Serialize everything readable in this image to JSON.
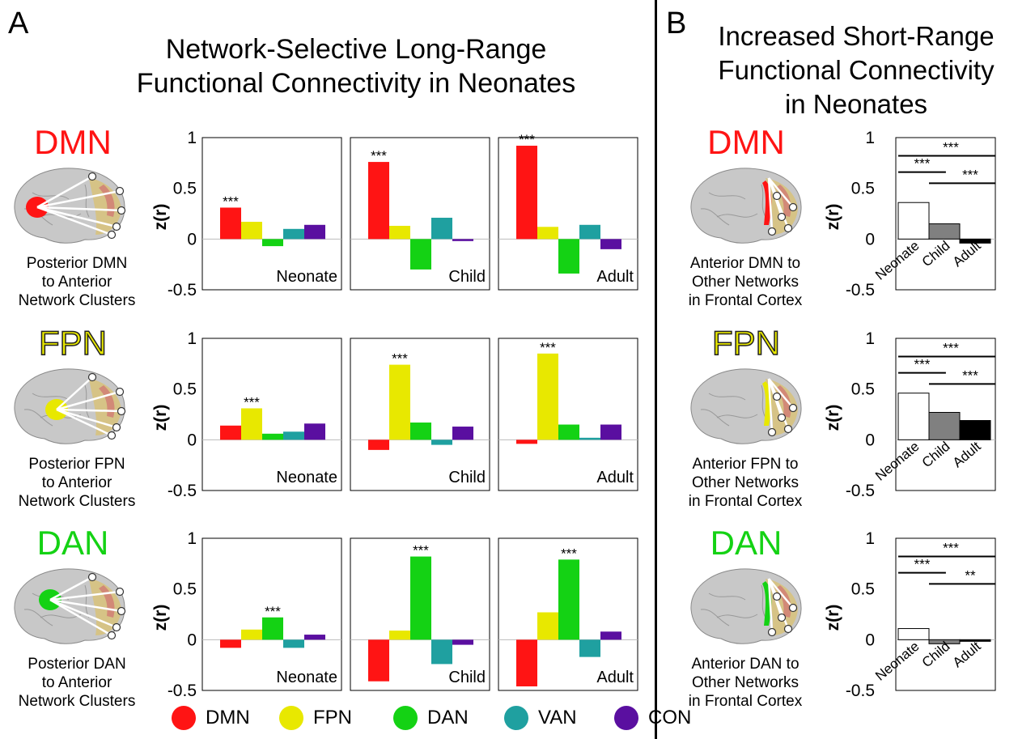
{
  "panel_a": {
    "letter": "A",
    "title_line1": "Network-Selective Long-Range",
    "title_line2": "Functional Connectivity in Neonates"
  },
  "panel_b": {
    "letter": "B",
    "title_line1": "Increased Short-Range",
    "title_line2": "Functional Connectivity",
    "title_line3": "in Neonates"
  },
  "rows": [
    {
      "network": "DMN",
      "color": "#ff1414",
      "desc_a": [
        "Posterior DMN",
        "to Anterior",
        "Network Clusters"
      ],
      "desc_b": [
        "Anterior DMN to",
        "Other Networks",
        "in Frontal Cortex"
      ]
    },
    {
      "network": "FPN",
      "color": "#e8e800",
      "desc_a": [
        "Posterior FPN",
        "to Anterior",
        "Network Clusters"
      ],
      "desc_b": [
        "Anterior FPN to",
        "Other Networks",
        "in Frontal Cortex"
      ]
    },
    {
      "network": "DAN",
      "color": "#14d214",
      "desc_a": [
        "Posterior DAN",
        "to Anterior",
        "Network Clusters"
      ],
      "desc_b": [
        "Anterior DAN to",
        "Other Networks",
        "in Frontal Cortex"
      ]
    }
  ],
  "legend": [
    {
      "label": "DMN",
      "color": "#ff1414"
    },
    {
      "label": "FPN",
      "color": "#e8e800"
    },
    {
      "label": "DAN",
      "color": "#14d214"
    },
    {
      "label": "VAN",
      "color": "#1fa0a0"
    },
    {
      "label": "CON",
      "color": "#5a0fa0"
    }
  ],
  "chart_data": [
    {
      "type": "bar",
      "panel": "A",
      "ylabel": "z(r)",
      "ylim": [
        -0.5,
        1
      ],
      "yticks": [
        "1",
        "0.5",
        "0",
        "-0.5"
      ],
      "categories": [
        "DMN",
        "FPN",
        "DAN",
        "VAN",
        "CON"
      ],
      "series_colors": [
        "#ff1414",
        "#e8e800",
        "#14d214",
        "#1fa0a0",
        "#5a0fa0"
      ],
      "rows": [
        {
          "network": "DMN",
          "groups": [
            {
              "name": "Neonate",
              "values": [
                0.31,
                0.17,
                -0.07,
                0.1,
                0.14
              ],
              "star_index": 0,
              "stars": "***"
            },
            {
              "name": "Child",
              "values": [
                0.76,
                0.13,
                -0.3,
                0.21,
                -0.02
              ],
              "star_index": 0,
              "stars": "***"
            },
            {
              "name": "Adult",
              "values": [
                0.92,
                0.12,
                -0.34,
                0.14,
                -0.1
              ],
              "star_index": 0,
              "stars": "***"
            }
          ]
        },
        {
          "network": "FPN",
          "groups": [
            {
              "name": "Neonate",
              "values": [
                0.14,
                0.31,
                0.06,
                0.08,
                0.16
              ],
              "star_index": 1,
              "stars": "***"
            },
            {
              "name": "Child",
              "values": [
                -0.1,
                0.74,
                0.17,
                -0.05,
                0.13
              ],
              "star_index": 1,
              "stars": "***"
            },
            {
              "name": "Adult",
              "values": [
                -0.04,
                0.85,
                0.15,
                0.02,
                0.15
              ],
              "star_index": 1,
              "stars": "***"
            }
          ]
        },
        {
          "network": "DAN",
          "groups": [
            {
              "name": "Neonate",
              "values": [
                -0.08,
                0.1,
                0.22,
                -0.08,
                0.05
              ],
              "star_index": 2,
              "stars": "***"
            },
            {
              "name": "Child",
              "values": [
                -0.41,
                0.09,
                0.82,
                -0.24,
                -0.05
              ],
              "star_index": 2,
              "stars": "***"
            },
            {
              "name": "Adult",
              "values": [
                -0.46,
                0.27,
                0.79,
                -0.17,
                0.08
              ],
              "star_index": 2,
              "stars": "***"
            }
          ]
        }
      ]
    },
    {
      "type": "bar",
      "panel": "B",
      "ylabel": "z(r)",
      "ylim": [
        -0.5,
        1
      ],
      "yticks": [
        "1",
        "0.5",
        "0",
        "-0.5"
      ],
      "categories": [
        "Neonate",
        "Child",
        "Adult"
      ],
      "bar_colors": [
        "#ffffff",
        "#808080",
        "#000000"
      ],
      "rows": [
        {
          "network": "DMN",
          "values": [
            0.36,
            0.15,
            -0.04
          ],
          "comparisons": [
            {
              "from": 0,
              "to": 2,
              "stars": "***"
            },
            {
              "from": 0,
              "to": 1,
              "stars": "***"
            },
            {
              "from": 1,
              "to": 2,
              "stars": "***"
            }
          ]
        },
        {
          "network": "FPN",
          "values": [
            0.46,
            0.27,
            0.19
          ],
          "comparisons": [
            {
              "from": 0,
              "to": 2,
              "stars": "***"
            },
            {
              "from": 0,
              "to": 1,
              "stars": "***"
            },
            {
              "from": 1,
              "to": 2,
              "stars": "***"
            }
          ]
        },
        {
          "network": "DAN",
          "values": [
            0.11,
            -0.04,
            0.0
          ],
          "comparisons": [
            {
              "from": 0,
              "to": 2,
              "stars": "***"
            },
            {
              "from": 0,
              "to": 1,
              "stars": "***"
            },
            {
              "from": 1,
              "to": 2,
              "stars": "**"
            }
          ]
        }
      ]
    }
  ]
}
